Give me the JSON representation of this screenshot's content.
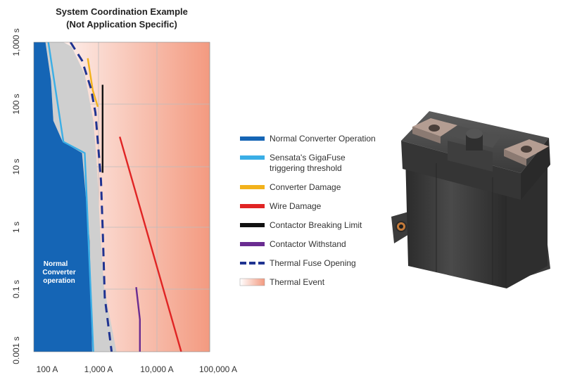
{
  "chart_data": {
    "type": "line",
    "title": "System Coordination Example",
    "subtitle": "(Not Application Specific)",
    "xscale": "log",
    "yscale": "log",
    "x_ticks": [
      "100 A",
      "1,000 A",
      "10,000 A",
      "100,000 A"
    ],
    "y_ticks": [
      "1,000 s",
      "100 s",
      "10 s",
      "1 s",
      "0.1 s",
      "0.001 s"
    ],
    "annotation": [
      "Normal",
      "Converter",
      "operation"
    ],
    "legend": [
      {
        "label": "Normal Converter Operation",
        "color": "#1565b5",
        "style": "bar"
      },
      {
        "label": "Sensata's GigaFuse triggering threshold",
        "lines": [
          "Sensata's GigaFuse",
          "triggering threshold"
        ],
        "color": "#3aaee6",
        "style": "bar"
      },
      {
        "label": "Converter Damage",
        "color": "#f2b21c",
        "style": "bar"
      },
      {
        "label": "Wire Damage",
        "color": "#e02424",
        "style": "bar"
      },
      {
        "label": "Contactor Breaking Limit",
        "color": "#111111",
        "style": "bar"
      },
      {
        "label": "Contactor Withstand",
        "color": "#6a2c91",
        "style": "bar"
      },
      {
        "label": "Thermal Fuse Opening",
        "color": "#1f3391",
        "style": "dash"
      },
      {
        "label": "Thermal Event",
        "color": "#f0907a",
        "style": "gradient"
      }
    ],
    "series": [
      {
        "name": "Sensata's GigaFuse triggering threshold",
        "points": [
          [
            180,
            1000
          ],
          [
            330,
            7
          ],
          [
            780,
            4
          ],
          [
            1100,
            0.0002
          ]
        ]
      },
      {
        "name": "Converter Damage",
        "points": [
          [
            880,
            450
          ],
          [
            1080,
            90
          ],
          [
            1320,
            40
          ]
        ]
      },
      {
        "name": "Wire Damage",
        "points": [
          [
            3200,
            9
          ],
          [
            38000,
            0.0002
          ]
        ]
      },
      {
        "name": "Contactor Breaking Limit",
        "points": [
          [
            1600,
            120
          ],
          [
            1600,
            1.5
          ]
        ]
      },
      {
        "name": "Contactor Withstand",
        "points": [
          [
            6200,
            0.005
          ],
          [
            7200,
            0.001
          ],
          [
            7200,
            0.0002
          ]
        ]
      },
      {
        "name": "Thermal Fuse Opening",
        "points": [
          [
            440,
            1000
          ],
          [
            700,
            400
          ],
          [
            1000,
            100
          ],
          [
            1200,
            30
          ],
          [
            1350,
            5
          ],
          [
            1500,
            1
          ],
          [
            1600,
            0.1
          ],
          [
            1750,
            0.003
          ],
          [
            2300,
            0.0002
          ]
        ]
      }
    ],
    "normal_converter_region": [
      [
        100,
        1000
      ],
      [
        160,
        1000
      ],
      [
        200,
        150
      ],
      [
        220,
        20
      ],
      [
        320,
        7
      ],
      [
        700,
        4
      ],
      [
        950,
        0.05
      ],
      [
        1050,
        0.0002
      ],
      [
        100,
        0.0002
      ]
    ],
    "gray_envelope_region": [
      [
        180,
        1000
      ],
      [
        330,
        1000
      ],
      [
        460,
        800
      ],
      [
        780,
        200
      ],
      [
        1100,
        20
      ],
      [
        1250,
        3
      ],
      [
        1380,
        0.3
      ],
      [
        1450,
        0.08
      ],
      [
        1700,
        0.005
      ],
      [
        2800,
        0.0002
      ],
      [
        1050,
        0.0002
      ],
      [
        950,
        0.05
      ],
      [
        700,
        4
      ],
      [
        320,
        7
      ],
      [
        220,
        20
      ],
      [
        200,
        150
      ],
      [
        160,
        1000
      ]
    ],
    "xlim": [
      100,
      120000
    ],
    "ylim": [
      0.0002,
      1000
    ],
    "grid": true
  },
  "colors": {
    "normal_blue": "#1565b5",
    "gray_region": "#cfcfcf",
    "thermal_start": "#ffffff",
    "thermal_end": "#f39a80",
    "grid": "#bdbdbd"
  }
}
